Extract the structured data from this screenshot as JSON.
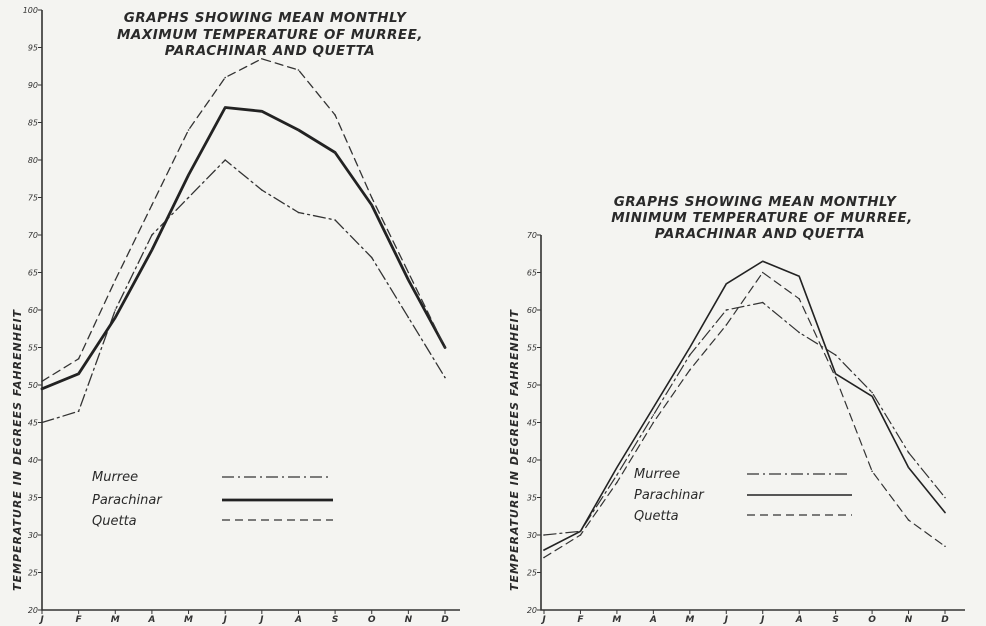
{
  "chart_data": [
    {
      "type": "line",
      "title_lines": [
        "GRAPHS SHOWING MEAN MONTHLY",
        "MAXIMUM TEMPERATURE OF MURREE,",
        "PARACHINAR AND QUETTA"
      ],
      "ylabel": "TEMPERATURE IN DEGREES FAHRENHEIT",
      "xlabel": "",
      "categories": [
        "J",
        "F",
        "M",
        "A",
        "M",
        "J",
        "J",
        "A",
        "S",
        "O",
        "N",
        "D"
      ],
      "ylim": [
        20,
        100
      ],
      "yticks": [
        "20",
        "25",
        "30",
        "35",
        "40",
        "45",
        "50",
        "55",
        "60",
        "65",
        "70",
        "75",
        "80",
        "85",
        "90",
        "95",
        "100"
      ],
      "legend_position": "lower-center",
      "grid": false,
      "series": [
        {
          "name": "Murree",
          "style": "dash-dot",
          "values": [
            45,
            46.5,
            60,
            70,
            75,
            80,
            76,
            73,
            72,
            67,
            59,
            51
          ]
        },
        {
          "name": "Parachinar",
          "style": "solid",
          "values": [
            49.5,
            51.5,
            59,
            68,
            78,
            87,
            86.5,
            84,
            81,
            74,
            64,
            55
          ]
        },
        {
          "name": "Quetta",
          "style": "dashed",
          "values": [
            50.5,
            53.5,
            64,
            74,
            84,
            91,
            93.5,
            92,
            86,
            75,
            65,
            55
          ]
        }
      ]
    },
    {
      "type": "line",
      "title_lines": [
        "GRAPHS SHOWING MEAN MONTHLY",
        "MINIMUM TEMPERATURE OF MURREE,",
        "PARACHINAR AND QUETTA"
      ],
      "ylabel": "TEMPERATURE IN DEGREES FAHRENHEIT",
      "xlabel": "",
      "categories": [
        "J",
        "F",
        "M",
        "A",
        "M",
        "J",
        "J",
        "A",
        "S",
        "O",
        "N",
        "D"
      ],
      "ylim": [
        20,
        70
      ],
      "yticks": [
        "20",
        "25",
        "30",
        "35",
        "40",
        "45",
        "50",
        "55",
        "60",
        "65",
        "70"
      ],
      "legend_position": "lower-center",
      "grid": false,
      "series": [
        {
          "name": "Murree",
          "style": "dash-dot",
          "values": [
            30,
            30.5,
            38,
            46,
            54,
            60,
            61,
            57,
            54,
            49,
            41,
            35
          ]
        },
        {
          "name": "Parachinar",
          "style": "solid",
          "values": [
            28,
            30.5,
            39,
            47,
            55,
            63.5,
            66.5,
            64.5,
            51.5,
            48.5,
            39,
            33
          ]
        },
        {
          "name": "Quetta",
          "style": "dashed",
          "values": [
            27,
            30,
            37,
            45,
            52,
            58,
            65,
            61.5,
            51,
            38.5,
            32,
            28.5
          ]
        }
      ]
    }
  ]
}
